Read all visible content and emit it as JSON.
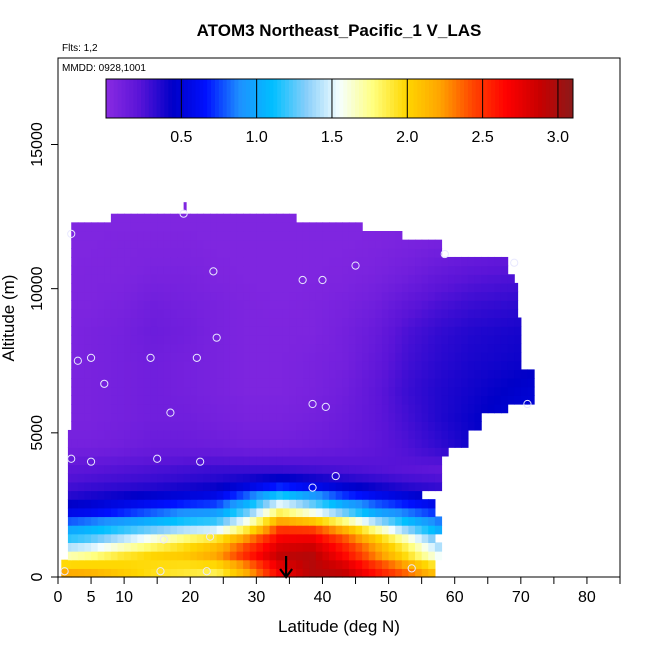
{
  "chart_data": {
    "type": "heatmap",
    "title": "ATOM3 Northeast_Pacific_1 V_LAS",
    "flights_label": "Flts: 1,2",
    "dates_label": "MMDD: 0928,1001",
    "xlabel": "Latitude (deg N)",
    "ylabel": "Altitude (m)",
    "xlim": [
      0,
      85
    ],
    "ylim": [
      0,
      18000
    ],
    "x_ticks": [
      0,
      5,
      10,
      20,
      30,
      40,
      50,
      60,
      70,
      80
    ],
    "y_ticks": [
      0,
      5000,
      10000,
      15000
    ],
    "y_tick_labels": [
      "0",
      "5000",
      "10000",
      "15000"
    ],
    "colorbar": {
      "range": [
        0,
        3.1
      ],
      "ticks": [
        0.5,
        1.0,
        1.5,
        2.0,
        2.5,
        3.0
      ],
      "tick_labels": [
        "0.5",
        "1.0",
        "1.5",
        "2.0",
        "2.5",
        "3.0"
      ],
      "colors": [
        "#8a2be2",
        "#5a14d8",
        "#0000c8",
        "#0010ff",
        "#1e90ff",
        "#00bfff",
        "#87cefa",
        "#f5ffff",
        "#ffff80",
        "#ffd700",
        "#ffa500",
        "#ff4500",
        "#ff0000",
        "#c80000",
        "#8b1a1a"
      ]
    },
    "layers": [
      {
        "alt": 250,
        "values": [
          2.2,
          2.15,
          2.05,
          1.95,
          1.9,
          1.85,
          2.2,
          2.7,
          2.95,
          2.9,
          2.6,
          2.35,
          2.05,
          1.6,
          1.2,
          1.0
        ]
      },
      {
        "alt": 750,
        "values": [
          1.65,
          1.75,
          1.9,
          2.0,
          2.05,
          2.2,
          2.55,
          2.9,
          2.95,
          2.65,
          2.3,
          1.95,
          1.55,
          1.1,
          0.9,
          0.8
        ]
      },
      {
        "alt": 1250,
        "values": [
          1.2,
          1.3,
          1.5,
          1.7,
          1.9,
          2.05,
          2.4,
          2.75,
          2.8,
          2.5,
          2.15,
          1.75,
          1.3,
          0.95,
          0.85,
          0.8
        ]
      },
      {
        "alt": 1750,
        "values": [
          0.9,
          1.0,
          1.1,
          1.2,
          1.3,
          1.35,
          1.8,
          2.45,
          2.4,
          2.1,
          1.65,
          1.25,
          0.95,
          0.85,
          0.75,
          0.7
        ]
      },
      {
        "alt": 2250,
        "values": [
          0.55,
          0.6,
          0.7,
          0.8,
          0.9,
          0.95,
          1.3,
          1.85,
          1.6,
          1.3,
          1.0,
          0.85,
          0.7,
          0.6,
          0.55,
          0.5
        ]
      },
      {
        "alt": 2750,
        "values": [
          0.35,
          0.4,
          0.45,
          0.5,
          0.55,
          0.6,
          0.9,
          1.3,
          1.05,
          0.8,
          0.65,
          0.55,
          0.45,
          0.4,
          0.35,
          0.3
        ]
      },
      {
        "alt": 3250,
        "values": [
          0.25,
          0.28,
          0.3,
          0.32,
          0.35,
          0.38,
          0.45,
          0.55,
          0.48,
          0.4,
          0.35,
          0.3,
          0.28,
          0.25,
          0.22,
          0.2
        ]
      },
      {
        "alt": 3750,
        "values": [
          0.2,
          0.22,
          0.24,
          0.26,
          0.28,
          0.3,
          0.3,
          0.3,
          0.28,
          0.26,
          0.24,
          0.22,
          0.2,
          0.2,
          0.2,
          0.2
        ]
      },
      {
        "alt": 4500,
        "values": [
          0.1,
          0.1,
          0.12,
          0.15,
          0.15,
          0.14,
          0.12,
          0.12,
          0.14,
          0.16,
          0.2,
          0.25,
          0.32,
          0.4,
          0.48,
          0.55
        ]
      },
      {
        "alt": 5500,
        "values": [
          0.08,
          0.08,
          0.1,
          0.12,
          0.12,
          0.1,
          0.08,
          0.08,
          0.1,
          0.14,
          0.2,
          0.28,
          0.36,
          0.42,
          0.48,
          0.52
        ]
      },
      {
        "alt": 6500,
        "values": [
          0.08,
          0.08,
          0.1,
          0.12,
          0.1,
          0.08,
          0.06,
          0.06,
          0.08,
          0.12,
          0.2,
          0.3,
          0.36,
          0.4,
          0.44,
          0.48
        ]
      },
      {
        "alt": 7500,
        "values": [
          0.06,
          0.08,
          0.1,
          0.12,
          0.1,
          0.08,
          0.06,
          0.06,
          0.08,
          0.1,
          0.18,
          0.28,
          0.34,
          0.38,
          0.4,
          0.42
        ]
      },
      {
        "alt": 8500,
        "values": [
          0.06,
          0.08,
          0.1,
          0.14,
          0.12,
          0.08,
          0.06,
          0.06,
          0.06,
          0.1,
          0.16,
          0.26,
          0.32,
          0.36,
          0.38,
          0.4
        ]
      },
      {
        "alt": 9500,
        "values": [
          0.06,
          0.06,
          0.08,
          0.12,
          0.1,
          0.08,
          0.06,
          0.05,
          0.06,
          0.08,
          0.12,
          0.2,
          0.26,
          0.3,
          0.32,
          0.34
        ]
      },
      {
        "alt": 10500,
        "values": [
          0.05,
          0.06,
          0.06,
          0.08,
          0.08,
          0.06,
          0.05,
          0.05,
          0.05,
          0.06,
          0.08,
          0.12,
          0.18,
          0.22,
          0.24,
          0.25
        ]
      },
      {
        "alt": 11500,
        "values": [
          0.05,
          0.05,
          0.06,
          0.06,
          0.06,
          0.05,
          0.05,
          0.05,
          0.05,
          0.05,
          0.06,
          0.08,
          0.1,
          0.12,
          0.14,
          0.15
        ]
      },
      {
        "alt": 12300,
        "values": [
          0.05,
          0.05,
          0.05,
          0.05,
          0.05,
          0.05,
          0.05,
          0.05,
          0.05,
          0.05,
          0.05,
          0.05,
          0.05,
          0.05,
          0.05,
          0.05
        ]
      }
    ],
    "markers": [
      {
        "lat": 1,
        "alt": 200
      },
      {
        "lat": 2,
        "alt": 11900
      },
      {
        "lat": 2,
        "alt": 4100
      },
      {
        "lat": 3,
        "alt": 7500
      },
      {
        "lat": 5,
        "alt": 7600
      },
      {
        "lat": 5,
        "alt": 4000
      },
      {
        "lat": 7,
        "alt": 6700
      },
      {
        "lat": 14,
        "alt": 7600
      },
      {
        "lat": 15,
        "alt": 4100
      },
      {
        "lat": 16,
        "alt": 1300
      },
      {
        "lat": 17,
        "alt": 5700
      },
      {
        "lat": 19,
        "alt": 12600
      },
      {
        "lat": 21,
        "alt": 7600
      },
      {
        "lat": 21.5,
        "alt": 4000
      },
      {
        "lat": 23,
        "alt": 1400
      },
      {
        "lat": 23.5,
        "alt": 10600
      },
      {
        "lat": 24,
        "alt": 8300
      },
      {
        "lat": 22.5,
        "alt": 200
      },
      {
        "lat": 15.5,
        "alt": 200
      },
      {
        "lat": 37,
        "alt": 10300
      },
      {
        "lat": 38.5,
        "alt": 6000
      },
      {
        "lat": 40,
        "alt": 10300
      },
      {
        "lat": 40.5,
        "alt": 5900
      },
      {
        "lat": 42,
        "alt": 3500
      },
      {
        "lat": 38.5,
        "alt": 3100
      },
      {
        "lat": 45,
        "alt": 10800
      },
      {
        "lat": 53.5,
        "alt": 300
      },
      {
        "lat": 58.5,
        "alt": 11200
      },
      {
        "lat": 69,
        "alt": 10900
      },
      {
        "lat": 71,
        "alt": 6000
      }
    ],
    "arrow_lat": 34.5,
    "grid": false
  }
}
